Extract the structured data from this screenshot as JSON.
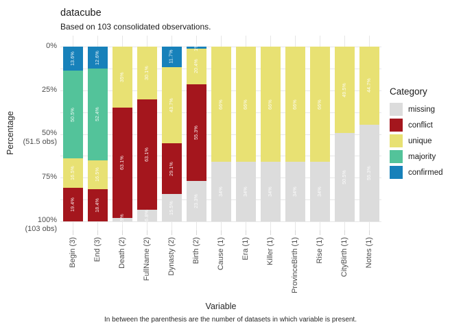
{
  "header": {
    "title": "datacube",
    "subtitle": "Based on 103 consolidated observations."
  },
  "caption": "In between the parenthesis are the number of datasets in which variable is present.",
  "chart_data": {
    "type": "bar",
    "stacked": true,
    "orientation": "vertical",
    "title": "datacube",
    "subtitle": "Based on 103 consolidated observations.",
    "xlabel": "Variable",
    "ylabel": "Percentage",
    "ylim": [
      0,
      100
    ],
    "grid": "horizontal major+minor light gray, vertical at category centers",
    "legend_position": "right",
    "categories": [
      "Begin (3)",
      "End (3)",
      "Death (2)",
      "FullName (2)",
      "Dynasty (2)",
      "Birth (2)",
      "Cause (1)",
      "Era (1)",
      "Killer (1)",
      "ProvinceBirth (1)",
      "Rise (1)",
      "CityBirth (1)",
      "Notes (1)"
    ],
    "series": [
      {
        "name": "confirmed",
        "color": "#1781ba",
        "values": [
          13.6,
          12.6,
          0,
          0,
          11.7,
          1,
          0,
          0,
          0,
          0,
          0,
          0,
          0
        ]
      },
      {
        "name": "majority",
        "color": "#53c39a",
        "values": [
          50.5,
          52.4,
          0,
          0,
          0,
          0,
          0,
          0,
          0,
          0,
          0,
          0,
          0
        ]
      },
      {
        "name": "unique",
        "color": "#e8e173",
        "values": [
          16.5,
          16.5,
          35,
          30.1,
          43.7,
          20.4,
          66,
          66,
          66,
          66,
          66,
          49.5,
          44.7
        ]
      },
      {
        "name": "conflict",
        "color": "#a4161d",
        "values": [
          19.4,
          18.4,
          63.1,
          63.1,
          29.1,
          55.3,
          0,
          0,
          0,
          0,
          0,
          0,
          0
        ]
      },
      {
        "name": "missing",
        "color": "#dcdcdc",
        "values": [
          0,
          0,
          1.9,
          6.8,
          15.5,
          23.3,
          34,
          34,
          34,
          34,
          34,
          50.5,
          55.3
        ]
      }
    ],
    "y_ticks": [
      {
        "pct": 0,
        "lines": [
          "0%"
        ]
      },
      {
        "pct": 25,
        "lines": [
          "25%"
        ]
      },
      {
        "pct": 50,
        "lines": [
          "50%",
          "(51.5 obs)"
        ]
      },
      {
        "pct": 75,
        "lines": [
          "75%"
        ]
      },
      {
        "pct": 100,
        "lines": [
          "100%",
          "(103 obs)"
        ]
      }
    ],
    "minor_gridlines_pct": [
      12.5,
      37.5,
      62.5,
      87.5
    ],
    "legend": {
      "title": "Category",
      "items": [
        "missing",
        "conflict",
        "unique",
        "majority",
        "confirmed"
      ]
    }
  }
}
